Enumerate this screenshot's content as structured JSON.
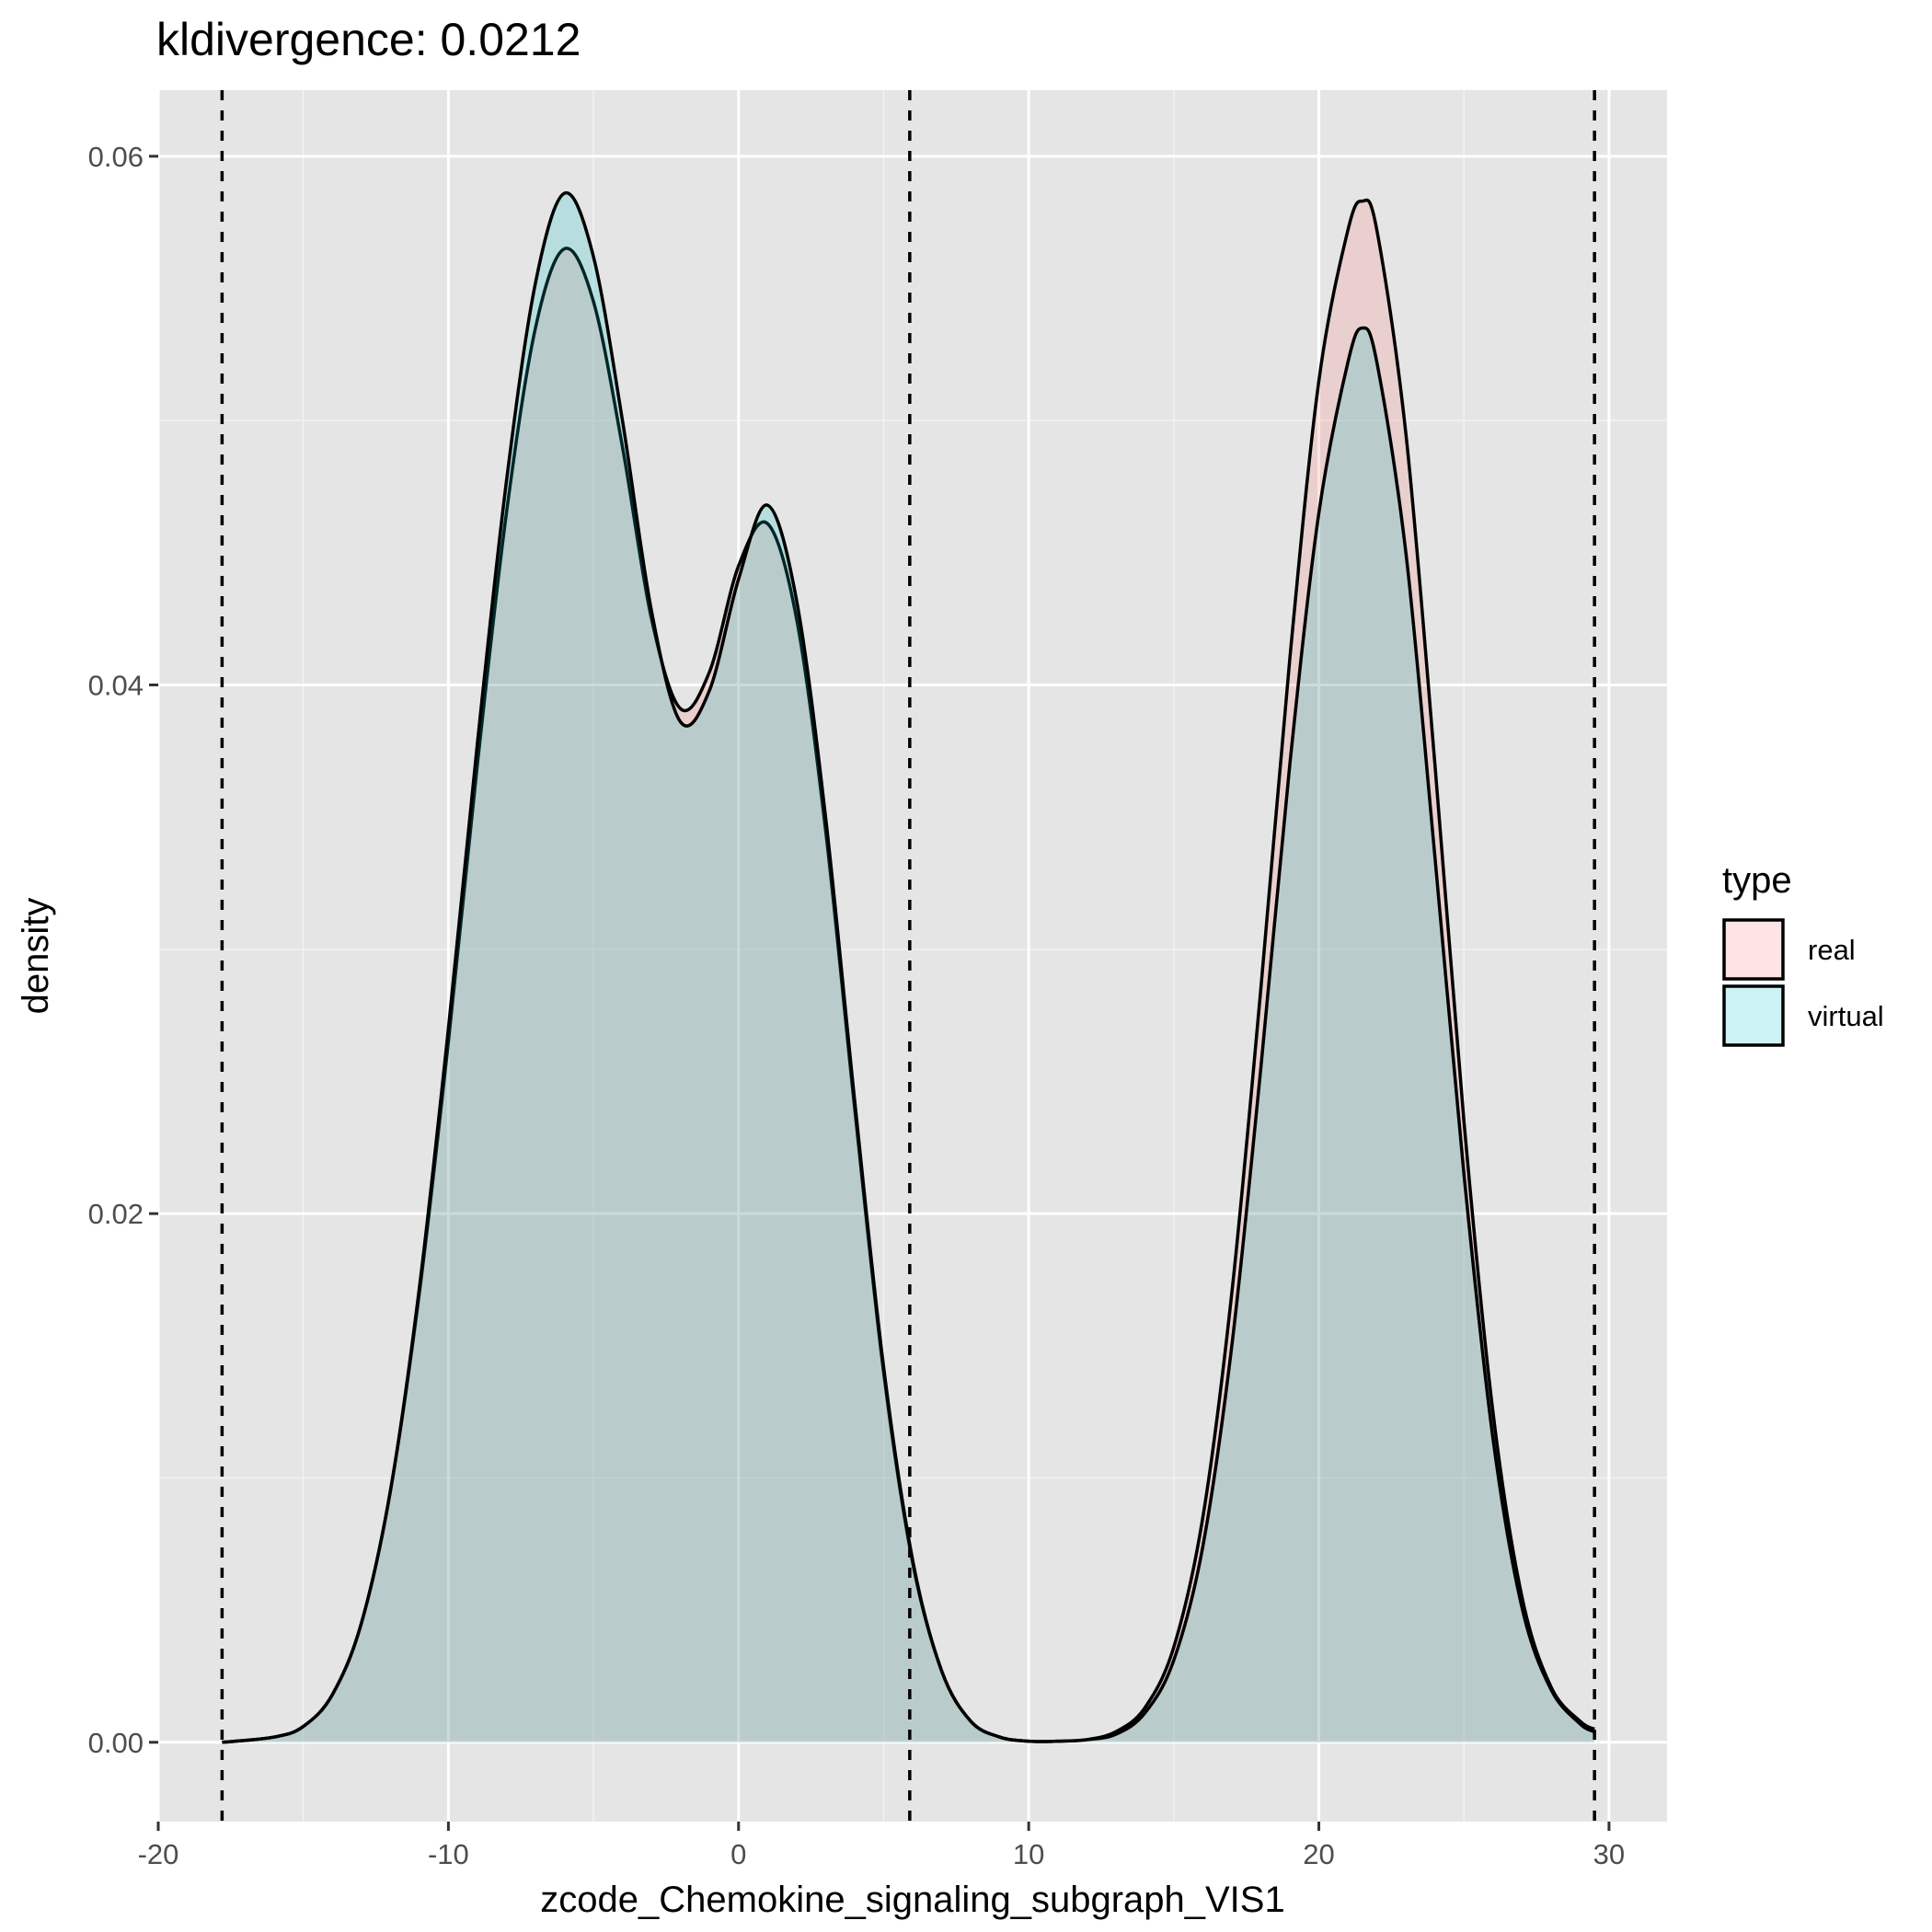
{
  "chart_data": {
    "type": "area",
    "title": "kldivergence: 0.0212",
    "xlabel": "zcode_Chemokine_signaling_subgraph_VIS1",
    "ylabel": "density",
    "xlim": [
      -20,
      32
    ],
    "ylim": [
      -0.003,
      0.0625
    ],
    "x_ticks": [
      -20,
      -10,
      0,
      10,
      20,
      30
    ],
    "x_tick_labels": [
      "-20",
      "-10",
      "0",
      "10",
      "20",
      "30"
    ],
    "y_ticks": [
      0,
      0.02,
      0.04,
      0.06
    ],
    "y_tick_labels": [
      "0.00",
      "0.02",
      "0.04",
      "0.06"
    ],
    "grid": true,
    "panel_background": "#e5e5e5",
    "legend": {
      "title": "type",
      "position": "right"
    },
    "vlines": [
      -17.8,
      5.9,
      29.5
    ],
    "x": [
      -17.8,
      -16,
      -15,
      -14,
      -13,
      -12,
      -11,
      -10,
      -9,
      -8,
      -7,
      -6,
      -5,
      -4,
      -3,
      -2,
      -1,
      0,
      1,
      2,
      3,
      4,
      5,
      6,
      7,
      8,
      9,
      10,
      11,
      12,
      13,
      14,
      15,
      16,
      17,
      18,
      19,
      20,
      21,
      21.5,
      22,
      23,
      24,
      25,
      26,
      27,
      28,
      29,
      29.5
    ],
    "series": [
      {
        "name": "real",
        "color": "#f8766d",
        "values": [
          0,
          0.0002,
          0.0006,
          0.0018,
          0.0045,
          0.0095,
          0.017,
          0.0265,
          0.037,
          0.0465,
          0.0535,
          0.0565,
          0.0545,
          0.049,
          0.0425,
          0.0391,
          0.0405,
          0.0445,
          0.0461,
          0.0425,
          0.0345,
          0.024,
          0.014,
          0.0068,
          0.0027,
          0.0008,
          0.0002,
          4e-05,
          4e-05,
          0.0001,
          0.0004,
          0.0013,
          0.0036,
          0.0085,
          0.017,
          0.0285,
          0.041,
          0.0515,
          0.0572,
          0.0583,
          0.0572,
          0.0495,
          0.037,
          0.0235,
          0.0125,
          0.0055,
          0.0021,
          0.0008,
          0.0005
        ]
      },
      {
        "name": "virtual",
        "color": "#00bfc4",
        "values": [
          0,
          0.0002,
          0.0006,
          0.0018,
          0.0045,
          0.0095,
          0.0172,
          0.027,
          0.0378,
          0.0477,
          0.0552,
          0.0586,
          0.0562,
          0.05,
          0.0428,
          0.0386,
          0.0398,
          0.044,
          0.0468,
          0.0432,
          0.035,
          0.0243,
          0.0142,
          0.0069,
          0.0027,
          0.0008,
          0.0002,
          4e-05,
          4e-05,
          0.0001,
          0.0003,
          0.0011,
          0.0031,
          0.0074,
          0.015,
          0.0255,
          0.037,
          0.0465,
          0.0522,
          0.0535,
          0.0522,
          0.045,
          0.0335,
          0.0215,
          0.0115,
          0.0051,
          0.002,
          0.0007,
          0.0004
        ]
      }
    ]
  }
}
